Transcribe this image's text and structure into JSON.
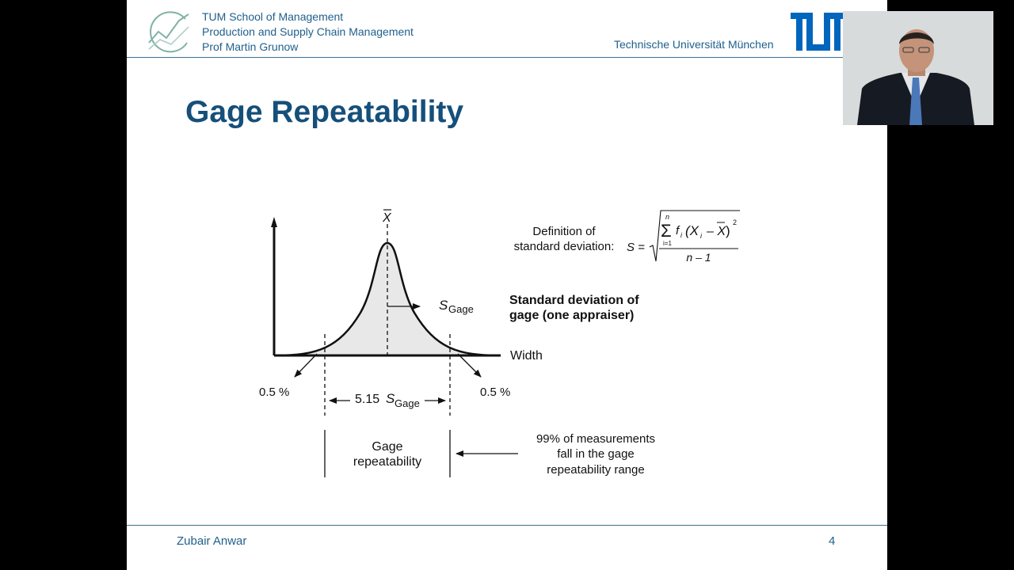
{
  "header": {
    "school": "TUM School of Management",
    "chair": "Production and Supply Chain Management",
    "professor": "Prof Martin Grunow",
    "university": "Technische Universität München"
  },
  "slide": {
    "title": "Gage Repeatability"
  },
  "diagram": {
    "mean_symbol": "X",
    "definition_label_line1": "Definition of",
    "definition_label_line2": "standard deviation:",
    "formula": {
      "lhs": "S =",
      "sum_upper": "n",
      "sum_lower": "i=1",
      "term_f": "f",
      "term_sub": "i",
      "term_open": "(X",
      "term_minus": "– X",
      "term_close": ")",
      "term_sup": "2",
      "denominator": "n – 1"
    },
    "s_gage_label": "S",
    "s_gage_sub": "Gage",
    "std_dev_label_line1": "Standard deviation of",
    "std_dev_label_line2": "gage (one appraiser)",
    "axis_label": "Width",
    "tail_left": "0.5 %",
    "tail_right": "0.5 %",
    "spread_label": "5.15",
    "spread_symbol": "S",
    "spread_sub": "Gage",
    "range_label_line1": "Gage",
    "range_label_line2": "repeatability",
    "note_line1": "99% of measurements",
    "note_line2": "fall in the gage",
    "note_line3": "repeatability range"
  },
  "footer": {
    "presenter": "Zubair Anwar",
    "page_number": "4"
  },
  "colors": {
    "brand_blue": "#1f5f8c",
    "title_blue": "#154f7a",
    "tum_logo": "#0065bd"
  }
}
